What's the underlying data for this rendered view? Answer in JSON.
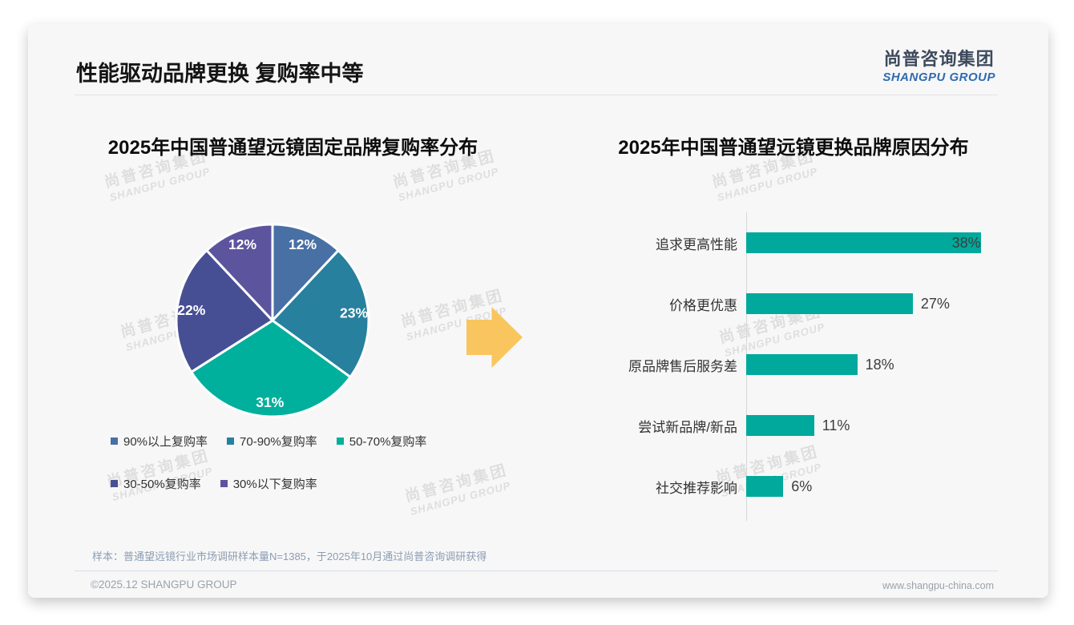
{
  "page": {
    "title": "性能驱动品牌更换 复购率中等",
    "logo": {
      "cn": "尚普咨询集团",
      "en": "SHANGPU GROUP"
    },
    "watermark": {
      "cn": "尚普咨询集团",
      "en": "SHANGPU GROUP"
    },
    "arrow_color": "#f9c55e",
    "footer": {
      "note": "样本：普通望远镜行业市场调研样本量N=1385，于2025年10月通过尚普咨询调研获得",
      "copyright": "©2025.12 SHANGPU GROUP",
      "website": "www.shangpu-china.com"
    }
  },
  "chart_data": [
    {
      "type": "pie",
      "title": "2025年中国普通望远镜固定品牌复购率分布",
      "start_angle_deg": 0,
      "direction": "clockwise",
      "legend_position": "bottom",
      "slices": [
        {
          "label": "90%以上复购率",
          "value": 12,
          "data_label": "12%",
          "color": "#4870a5"
        },
        {
          "label": "70-90%复购率",
          "value": 23,
          "data_label": "23%",
          "color": "#27809d"
        },
        {
          "label": "50-70%复购率",
          "value": 31,
          "data_label": "31%",
          "color": "#00b09c"
        },
        {
          "label": "30-50%复购率",
          "value": 22,
          "data_label": "22%",
          "color": "#474f94"
        },
        {
          "label": "30%以下复购率",
          "value": 12,
          "data_label": "12%",
          "color": "#5d549e"
        }
      ]
    },
    {
      "type": "bar",
      "title": "2025年中国普通望远镜更换品牌原因分布",
      "orientation": "horizontal",
      "bar_color": "#00a99c",
      "xlim": [
        0,
        40
      ],
      "grid": false,
      "categories": [
        "追求更高性能",
        "价格更优惠",
        "原品牌售后服务差",
        "尝试新品牌/新品",
        "社交推荐影响"
      ],
      "values": [
        38,
        27,
        18,
        11,
        6
      ],
      "value_labels": [
        "38%",
        "27%",
        "18%",
        "11%",
        "6%"
      ]
    }
  ]
}
